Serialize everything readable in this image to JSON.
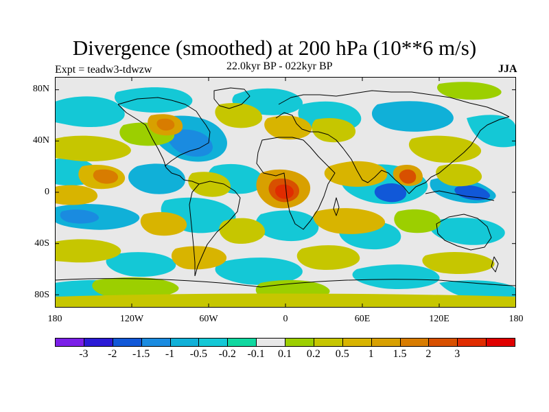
{
  "title": "Divergence (smoothed) at 200 hPa (10**6 m/s)",
  "experiment": "Expt = teadw3-tdwzw",
  "period": "22.0kyr BP - 022kyr BP",
  "season": "JJA",
  "lat_labels": [
    "80N",
    "40N",
    "0",
    "40S",
    "80S"
  ],
  "lon_labels": [
    "180",
    "120W",
    "60W",
    "0",
    "60E",
    "120E",
    "180"
  ],
  "colorbar": {
    "colors": [
      "#7b1fe8",
      "#2b1bd6",
      "#1158d8",
      "#1a8be0",
      "#10b0d8",
      "#14c8d6",
      "#10d8a0",
      "#e8e8e8",
      "#9ccf00",
      "#c6c600",
      "#d8b400",
      "#d8a000",
      "#d87c00",
      "#d85000",
      "#e02c00",
      "#e00000"
    ],
    "labels": [
      "-3",
      "-2",
      "-1.5",
      "-1",
      "-0.5",
      "-0.2",
      "-0.1",
      "0.1",
      "0.2",
      "0.5",
      "1",
      "1.5",
      "2",
      "3"
    ]
  }
}
